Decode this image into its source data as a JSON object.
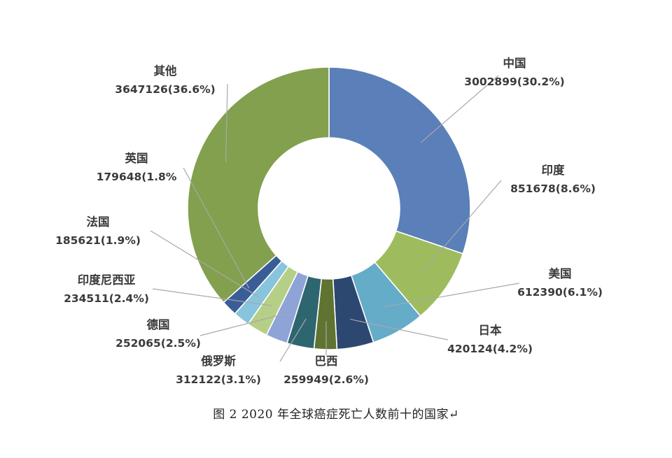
{
  "chart_data": {
    "type": "pie",
    "variant": "donut",
    "slices": [
      {
        "name": "中国",
        "value": 3002899,
        "value_label": "3002899(30.2%)",
        "percent": 30.2,
        "color": "#5b7fb9"
      },
      {
        "name": "印度",
        "value": 851678,
        "value_label": "851678(8.6%)",
        "percent": 8.6,
        "color": "#9ebc5e"
      },
      {
        "name": "美国",
        "value": 612390,
        "value_label": "612390(6.1%)",
        "percent": 6.1,
        "color": "#65acc8"
      },
      {
        "name": "日本",
        "value": 420124,
        "value_label": "420124(4.2%)",
        "percent": 4.2,
        "color": "#2c4770"
      },
      {
        "name": "巴西",
        "value": 259949,
        "value_label": "259949(2.6%)",
        "percent": 2.6,
        "color": "#5e7430"
      },
      {
        "name": "俄罗斯",
        "value": 312122,
        "value_label": "312122(3.1%)",
        "percent": 3.1,
        "color": "#2e6670"
      },
      {
        "name": "德国",
        "value": 252065,
        "value_label": "252065(2.5%)",
        "percent": 2.5,
        "color": "#8ea3d6"
      },
      {
        "name": "印度尼西亚",
        "value": 234511,
        "value_label": "234511(2.4%)",
        "percent": 2.4,
        "color": "#b6cf86"
      },
      {
        "name": "法国",
        "value": 185621,
        "value_label": "185621(1.9%)",
        "percent": 1.9,
        "color": "#88c4db"
      },
      {
        "name": "英国",
        "value": 179648,
        "value_label": "179648(1.8%",
        "percent": 1.8,
        "color": "#3a5d98"
      },
      {
        "name": "其他",
        "value": 3647126,
        "value_label": "3647126(36.6%)",
        "percent": 36.6,
        "color": "#82a04e"
      }
    ],
    "start_angle": "12 o'clock",
    "direction": "clockwise",
    "legend": "none",
    "leader_line_color": "#a8a8a8"
  },
  "caption": "图 2 2020 年全球癌症死亡人数前十的国家↵"
}
